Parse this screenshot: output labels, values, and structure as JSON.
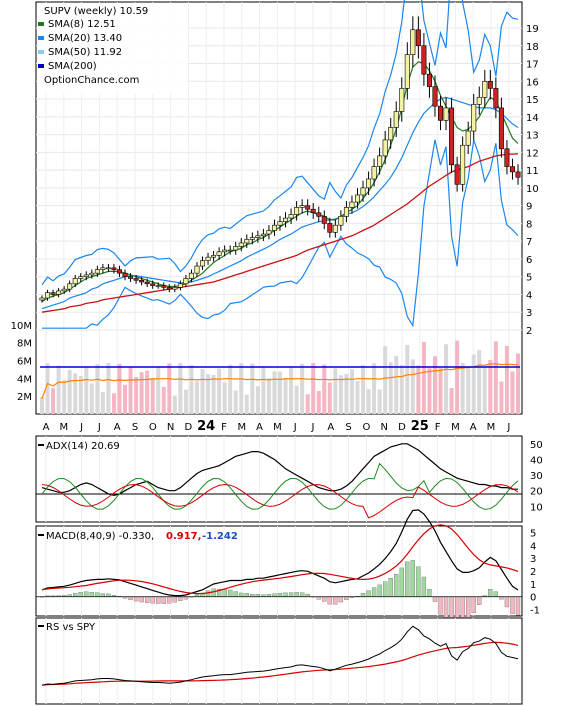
{
  "legend": {
    "title": "SUPV (weekly) 10.59",
    "items": [
      {
        "label": "SMA(8) 12.51",
        "color": "#1f7a1f"
      },
      {
        "label": "SMA(20) 13.40",
        "color": "#1c86ee"
      },
      {
        "label": "SMA(50) 11.92",
        "color": "#87cefa"
      },
      {
        "label": "SMA(200)",
        "color": "#0000cc"
      }
    ],
    "source": "OptionChance.com"
  },
  "chart_data": [
    {
      "type": "candlestick",
      "title": "SUPV (weekly) 10.59",
      "y_ticks": [
        "2",
        "3",
        "4",
        "5",
        "6",
        "7",
        "8",
        "9",
        "10",
        "11",
        "12",
        "13",
        "14",
        "15",
        "16",
        "17",
        "18",
        "19"
      ],
      "ylim": [
        2,
        19.5
      ],
      "x_ticks": [
        "A",
        "M",
        "J",
        "J",
        "A",
        "S",
        "O",
        "N",
        "D",
        "24",
        "F",
        "M",
        "A",
        "M",
        "J",
        "J",
        "A",
        "S",
        "O",
        "N",
        "D",
        "25",
        "F",
        "M",
        "A",
        "M",
        "J"
      ],
      "close": [
        3.8,
        4.1,
        4.0,
        4.2,
        4.3,
        4.6,
        4.9,
        5.0,
        5.1,
        5.2,
        5.4,
        5.5,
        5.5,
        5.4,
        5.2,
        5.0,
        4.9,
        4.8,
        4.7,
        4.6,
        4.5,
        4.5,
        4.4,
        4.3,
        4.4,
        4.6,
        4.9,
        5.2,
        5.6,
        5.9,
        6.1,
        6.2,
        6.4,
        6.5,
        6.5,
        6.7,
        6.9,
        7.1,
        7.2,
        7.3,
        7.4,
        7.6,
        7.9,
        8.1,
        8.3,
        8.5,
        8.9,
        9.0,
        8.8,
        8.6,
        8.4,
        8.0,
        7.5,
        7.9,
        8.4,
        8.9,
        9.2,
        9.6,
        10.0,
        10.5,
        11.2,
        11.8,
        12.7,
        13.4,
        14.3,
        15.6,
        17.5,
        18.9,
        18.0,
        16.4,
        15.7,
        14.6,
        13.8,
        14.5,
        11.3,
        10.2,
        12.4,
        13.2,
        14.7,
        15.1,
        16.0,
        15.6,
        14.5,
        12.2,
        11.2,
        10.9,
        10.6
      ],
      "sma8": [
        3.6,
        3.8,
        3.9,
        4.0,
        4.1,
        4.3,
        4.5,
        4.7,
        4.9,
        5.0,
        5.1,
        5.2,
        5.3,
        5.3,
        5.3,
        5.2,
        5.1,
        5.0,
        4.9,
        4.8,
        4.7,
        4.6,
        4.5,
        4.45,
        4.45,
        4.5,
        4.6,
        4.8,
        5.0,
        5.2,
        5.5,
        5.8,
        6.0,
        6.2,
        6.4,
        6.5,
        6.6,
        6.8,
        6.9,
        7.1,
        7.2,
        7.4,
        7.6,
        7.8,
        8.0,
        8.2,
        8.4,
        8.6,
        8.7,
        8.6,
        8.5,
        8.4,
        8.2,
        8.2,
        8.4,
        8.6,
        8.8,
        9.0,
        9.4,
        9.8,
        10.3,
        10.9,
        11.6,
        12.4,
        13.3,
        14.5,
        15.8,
        16.8,
        17.1,
        17.0,
        16.6,
        16.0,
        15.2,
        14.6,
        14.0,
        13.4,
        13.2,
        13.3,
        13.6,
        14.0,
        14.6,
        15.1,
        14.9,
        14.2,
        13.5,
        12.8,
        12.5
      ],
      "sma20": [
        3.2,
        3.3,
        3.4,
        3.5,
        3.6,
        3.8,
        3.9,
        4.0,
        4.1,
        4.3,
        4.4,
        4.6,
        4.7,
        4.8,
        4.9,
        5.0,
        5.05,
        5.05,
        5.0,
        4.95,
        4.9,
        4.85,
        4.8,
        4.75,
        4.7,
        4.65,
        4.65,
        4.7,
        4.8,
        4.9,
        5.0,
        5.15,
        5.3,
        5.45,
        5.6,
        5.75,
        5.9,
        6.1,
        6.25,
        6.4,
        6.55,
        6.7,
        6.9,
        7.1,
        7.25,
        7.4,
        7.6,
        7.8,
        7.9,
        8.0,
        8.1,
        8.15,
        8.2,
        8.25,
        8.35,
        8.5,
        8.6,
        8.75,
        8.95,
        9.2,
        9.5,
        9.85,
        10.2,
        10.6,
        11.1,
        11.7,
        12.4,
        13.1,
        13.7,
        14.2,
        14.5,
        14.8,
        15.0,
        15.1,
        15.0,
        14.9,
        14.8,
        14.7,
        14.6,
        14.5,
        14.5,
        14.5,
        14.4,
        14.2,
        13.9,
        13.6,
        13.4
      ],
      "sma50": [
        3.0,
        3.05,
        3.1,
        3.15,
        3.2,
        3.3,
        3.35,
        3.4,
        3.5,
        3.55,
        3.6,
        3.7,
        3.75,
        3.8,
        3.85,
        3.9,
        3.95,
        4.0,
        4.05,
        4.1,
        4.15,
        4.2,
        4.25,
        4.3,
        4.35,
        4.4,
        4.45,
        4.5,
        4.55,
        4.6,
        4.65,
        4.7,
        4.8,
        4.9,
        5.0,
        5.1,
        5.2,
        5.3,
        5.4,
        5.5,
        5.6,
        5.7,
        5.8,
        5.9,
        6.0,
        6.1,
        6.2,
        6.35,
        6.5,
        6.6,
        6.7,
        6.8,
        6.9,
        7.0,
        7.1,
        7.2,
        7.3,
        7.45,
        7.6,
        7.75,
        7.9,
        8.1,
        8.3,
        8.5,
        8.7,
        8.9,
        9.1,
        9.35,
        9.6,
        9.85,
        10.1,
        10.3,
        10.5,
        10.7,
        10.9,
        11.0,
        11.1,
        11.2,
        11.35,
        11.5,
        11.6,
        11.7,
        11.8,
        11.85,
        11.9,
        11.9,
        11.92
      ],
      "volume_ylabels": [
        "2M",
        "4M",
        "6M",
        "8M",
        "10M"
      ]
    },
    {
      "type": "line",
      "title": "ADX(14) 20.69",
      "y_ticks": [
        "10",
        "20",
        "30",
        "40",
        "50"
      ],
      "ylim": [
        0,
        55
      ],
      "adx": [
        22,
        21,
        20,
        19,
        19,
        20,
        22,
        24,
        25,
        24,
        22,
        20,
        18,
        17,
        18,
        20,
        22,
        24,
        25,
        26,
        24,
        22,
        21,
        20,
        20,
        22,
        25,
        28,
        31,
        33,
        34,
        35,
        36,
        38,
        40,
        42,
        43,
        44,
        45,
        45,
        44,
        42,
        40,
        37,
        34,
        32,
        30,
        28,
        26,
        24,
        22,
        21,
        20,
        20,
        21,
        23,
        26,
        30,
        34,
        38,
        42,
        44,
        46,
        48,
        49,
        50,
        50,
        48,
        46,
        43,
        40,
        37,
        34,
        32,
        30,
        28,
        27,
        26,
        25,
        24,
        24,
        23,
        23,
        22,
        22,
        21,
        21
      ]
    },
    {
      "type": "line",
      "title": "MACD(8,40,9) -0.330, 0.917, -1.242",
      "y_ticks": [
        "-1",
        "0",
        "1",
        "2",
        "3",
        "4",
        "5"
      ],
      "ylim": [
        -1.5,
        5.5
      ]
    },
    {
      "type": "line",
      "title": "RS vs SPY"
    }
  ],
  "month_labels": [
    "A",
    "M",
    "J",
    "J",
    "A",
    "S",
    "O",
    "N",
    "D",
    "24",
    "F",
    "M",
    "A",
    "M",
    "J",
    "J",
    "A",
    "S",
    "O",
    "N",
    "D",
    "25",
    "F",
    "M",
    "A",
    "M",
    "J"
  ],
  "panels": {
    "adx": {
      "label": "ADX(14) 20.69",
      "ticks": [
        "50",
        "40",
        "30",
        "20",
        "10"
      ]
    },
    "macd": {
      "label": "MACD(8,40,9) -0.330,",
      "value2": "0.917,",
      "value3": "-1.242",
      "ticks": [
        "5",
        "4",
        "3",
        "2",
        "1",
        "0",
        "-1"
      ]
    },
    "rs": {
      "label": "RS vs SPY"
    }
  },
  "colors": {
    "up": "#f2f2a0",
    "down": "#cc2222",
    "vol_up": "#d9d9d9",
    "vol_down": "#f4b6c2",
    "sma200": "#0000cc",
    "macd_red": "#d40000",
    "macd_blue": "#1f4fbf"
  }
}
